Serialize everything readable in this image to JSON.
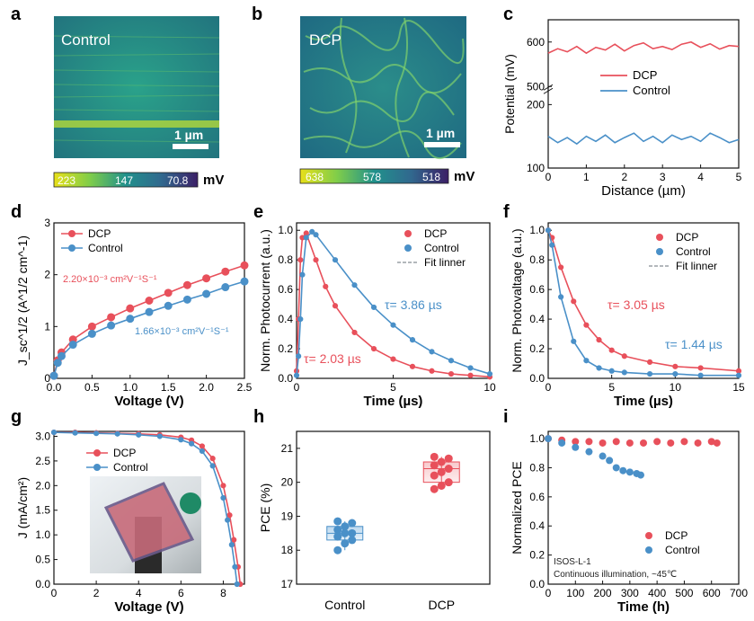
{
  "panels": {
    "a": {
      "label": "a",
      "title": "Control",
      "scale": "1 µm",
      "cbar_ticks": [
        "223",
        "147",
        "70.8"
      ],
      "cbar_unit": "mV"
    },
    "b": {
      "label": "b",
      "title": "DCP",
      "scale": "1 µm",
      "cbar_ticks": [
        "638",
        "578",
        "518"
      ],
      "cbar_unit": "mV"
    },
    "c": {
      "label": "c"
    },
    "d": {
      "label": "d"
    },
    "e": {
      "label": "e"
    },
    "f": {
      "label": "f"
    },
    "g": {
      "label": "g"
    },
    "h": {
      "label": "h"
    },
    "i": {
      "label": "i"
    }
  },
  "colors": {
    "dcp": "#e8505b",
    "control": "#4a90c8",
    "fit": "#9aa0a6"
  },
  "chart_data": [
    {
      "id": "c",
      "type": "line",
      "xlabel": "Distance (µm)",
      "ylabel": "Potential (mV)",
      "xlim": [
        0,
        5
      ],
      "xticks": [
        "0",
        "1",
        "2",
        "3",
        "4",
        "5"
      ],
      "ylim_upper": [
        500,
        650
      ],
      "yticks_upper": [
        "500",
        "600"
      ],
      "ylim_lower": [
        100,
        220
      ],
      "yticks_lower": [
        "100",
        "200"
      ],
      "legend": [
        "DCP",
        "Control"
      ],
      "series": [
        {
          "name": "DCP",
          "x": [
            0,
            0.25,
            0.5,
            0.75,
            1,
            1.25,
            1.5,
            1.75,
            2,
            2.25,
            2.5,
            2.75,
            3,
            3.25,
            3.5,
            3.75,
            4,
            4.25,
            4.5,
            4.75,
            5
          ],
          "y": [
            575,
            585,
            578,
            590,
            575,
            588,
            582,
            595,
            580,
            592,
            598,
            585,
            590,
            583,
            595,
            600,
            588,
            596,
            584,
            592,
            590
          ]
        },
        {
          "name": "Control",
          "x": [
            0,
            0.25,
            0.5,
            0.75,
            1,
            1.25,
            1.5,
            1.75,
            2,
            2.25,
            2.5,
            2.75,
            3,
            3.25,
            3.5,
            3.75,
            4,
            4.25,
            4.5,
            4.75,
            5
          ],
          "y": [
            150,
            140,
            148,
            138,
            150,
            142,
            152,
            140,
            148,
            155,
            142,
            150,
            140,
            152,
            145,
            150,
            142,
            155,
            148,
            140,
            145
          ]
        }
      ]
    },
    {
      "id": "d",
      "type": "scatter",
      "xlabel": "Voltage (V)",
      "ylabel": "J_sc^1/2 (A^1/2 cm^-1)",
      "xlim": [
        0,
        2.5
      ],
      "xticks": [
        "0.0",
        "0.5",
        "1.0",
        "1.5",
        "2.0",
        "2.5"
      ],
      "ylim": [
        0,
        3
      ],
      "yticks": [
        "0",
        "1",
        "2",
        "3"
      ],
      "legend": [
        "DCP",
        "Control"
      ],
      "annotations": [
        "2.20×10⁻³ cm²V⁻¹S⁻¹",
        "1.66×10⁻³ cm²V⁻¹S⁻¹"
      ],
      "series": [
        {
          "name": "DCP",
          "x": [
            0,
            0.05,
            0.1,
            0.25,
            0.5,
            0.75,
            1,
            1.25,
            1.5,
            1.75,
            2,
            2.25,
            2.5
          ],
          "y": [
            0.05,
            0.35,
            0.5,
            0.75,
            1.0,
            1.18,
            1.35,
            1.5,
            1.65,
            1.8,
            1.93,
            2.06,
            2.18
          ]
        },
        {
          "name": "Control",
          "x": [
            0,
            0.05,
            0.1,
            0.25,
            0.5,
            0.75,
            1,
            1.25,
            1.5,
            1.75,
            2,
            2.25,
            2.5
          ],
          "y": [
            0.05,
            0.3,
            0.43,
            0.65,
            0.86,
            1.02,
            1.15,
            1.28,
            1.4,
            1.52,
            1.63,
            1.76,
            1.87
          ]
        }
      ]
    },
    {
      "id": "e",
      "type": "scatter",
      "xlabel": "Time (µs)",
      "ylabel": "Norm. Photocurrent (a.u.)",
      "xlim": [
        0,
        10
      ],
      "xticks": [
        "0",
        "5",
        "10"
      ],
      "ylim": [
        0,
        1.05
      ],
      "yticks": [
        "0.0",
        "0.2",
        "0.4",
        "0.6",
        "0.8",
        "1.0"
      ],
      "legend": [
        "DCP",
        "Control",
        "Fit linner"
      ],
      "annotations": [
        "τ= 3.86 µs",
        "τ= 2.03 µs"
      ],
      "series": [
        {
          "name": "DCP",
          "x": [
            0,
            0.1,
            0.2,
            0.3,
            0.5,
            1,
            1.5,
            2,
            3,
            4,
            5,
            6,
            7,
            8,
            9,
            10
          ],
          "y": [
            0.05,
            0.4,
            0.8,
            0.95,
            0.98,
            0.8,
            0.62,
            0.49,
            0.31,
            0.2,
            0.13,
            0.08,
            0.05,
            0.03,
            0.02,
            0.01
          ]
        },
        {
          "name": "Control",
          "x": [
            0,
            0.1,
            0.2,
            0.3,
            0.5,
            0.8,
            1,
            2,
            3,
            4,
            5,
            6,
            7,
            8,
            9,
            10
          ],
          "y": [
            0.02,
            0.15,
            0.4,
            0.7,
            0.95,
            0.99,
            0.97,
            0.8,
            0.63,
            0.48,
            0.36,
            0.26,
            0.18,
            0.12,
            0.07,
            0.03
          ]
        }
      ]
    },
    {
      "id": "f",
      "type": "scatter",
      "xlabel": "Time (µs)",
      "ylabel": "Norm. Photovaltage (a.u.)",
      "xlim": [
        0,
        15
      ],
      "xticks": [
        "0",
        "5",
        "10",
        "15"
      ],
      "ylim": [
        0,
        1.05
      ],
      "yticks": [
        "0.0",
        "0.2",
        "0.4",
        "0.6",
        "0.8",
        "1.0"
      ],
      "legend": [
        "DCP",
        "Control",
        "Fit linner"
      ],
      "annotations": [
        "τ= 3.05 µs",
        "τ= 1.44 µs"
      ],
      "series": [
        {
          "name": "DCP",
          "x": [
            0,
            0.3,
            1,
            2,
            3,
            4,
            5,
            6,
            8,
            10,
            12,
            15
          ],
          "y": [
            1.0,
            0.95,
            0.75,
            0.52,
            0.36,
            0.26,
            0.19,
            0.15,
            0.11,
            0.08,
            0.07,
            0.05
          ]
        },
        {
          "name": "Control",
          "x": [
            0,
            0.3,
            1,
            2,
            3,
            4,
            5,
            6,
            8,
            10,
            12,
            15
          ],
          "y": [
            1.0,
            0.9,
            0.55,
            0.25,
            0.12,
            0.07,
            0.05,
            0.04,
            0.03,
            0.03,
            0.02,
            0.02
          ]
        }
      ]
    },
    {
      "id": "g",
      "type": "line",
      "xlabel": "Voltage (V)",
      "ylabel": "J (mA/cm²)",
      "xlim": [
        0,
        9
      ],
      "xticks": [
        "0",
        "2",
        "4",
        "6",
        "8"
      ],
      "ylim": [
        0,
        3.1
      ],
      "yticks": [
        "0.0",
        "0.5",
        "1.0",
        "1.5",
        "2.0",
        "2.5",
        "3.0"
      ],
      "legend": [
        "DCP",
        "Control"
      ],
      "series": [
        {
          "name": "DCP",
          "x": [
            0,
            1,
            2,
            3,
            4,
            5,
            6,
            6.5,
            7,
            7.5,
            8,
            8.3,
            8.5,
            8.7,
            8.8
          ],
          "y": [
            3.08,
            3.08,
            3.07,
            3.06,
            3.05,
            3.03,
            2.98,
            2.92,
            2.8,
            2.55,
            2.0,
            1.4,
            0.9,
            0.35,
            0.0
          ]
        },
        {
          "name": "Control",
          "x": [
            0,
            1,
            2,
            3,
            4,
            5,
            6,
            6.5,
            7,
            7.5,
            8,
            8.2,
            8.4,
            8.55,
            8.65
          ],
          "y": [
            3.08,
            3.07,
            3.06,
            3.05,
            3.03,
            3.0,
            2.93,
            2.85,
            2.7,
            2.4,
            1.75,
            1.3,
            0.8,
            0.35,
            0.0
          ]
        }
      ]
    },
    {
      "id": "h",
      "type": "scatter",
      "xlabel": "",
      "ylabel": "PCE (%)",
      "categories": [
        "Control",
        "DCP"
      ],
      "ylim": [
        17,
        21.5
      ],
      "yticks": [
        "17",
        "18",
        "19",
        "20",
        "21"
      ],
      "series": [
        {
          "name": "Control",
          "values": [
            18.0,
            18.2,
            18.3,
            18.4,
            18.5,
            18.5,
            18.6,
            18.7,
            18.8,
            18.85
          ]
        },
        {
          "name": "DCP",
          "values": [
            19.8,
            19.9,
            20.0,
            20.2,
            20.3,
            20.4,
            20.5,
            20.6,
            20.7,
            20.75
          ]
        }
      ]
    },
    {
      "id": "i",
      "type": "scatter",
      "xlabel": "Time (h)",
      "ylabel": "Normalized PCE",
      "xlim": [
        0,
        700
      ],
      "xticks": [
        "0",
        "100",
        "200",
        "300",
        "400",
        "500",
        "600",
        "700"
      ],
      "ylim": [
        0,
        1.05
      ],
      "yticks": [
        "0.0",
        "0.2",
        "0.4",
        "0.6",
        "0.8",
        "1.0"
      ],
      "legend": [
        "DCP",
        "Control"
      ],
      "annotations": [
        "ISOS-L-1",
        "Continuous illumination, ~45℃"
      ],
      "series": [
        {
          "name": "DCP",
          "x": [
            0,
            50,
            100,
            150,
            200,
            250,
            300,
            350,
            400,
            450,
            500,
            550,
            600,
            620
          ],
          "y": [
            1.0,
            0.99,
            0.98,
            0.98,
            0.97,
            0.98,
            0.97,
            0.97,
            0.98,
            0.97,
            0.98,
            0.97,
            0.98,
            0.97
          ]
        },
        {
          "name": "Control",
          "x": [
            0,
            50,
            100,
            150,
            200,
            225,
            250,
            275,
            300,
            325,
            340
          ],
          "y": [
            1.0,
            0.97,
            0.94,
            0.91,
            0.88,
            0.85,
            0.8,
            0.78,
            0.77,
            0.76,
            0.75
          ]
        }
      ]
    }
  ]
}
